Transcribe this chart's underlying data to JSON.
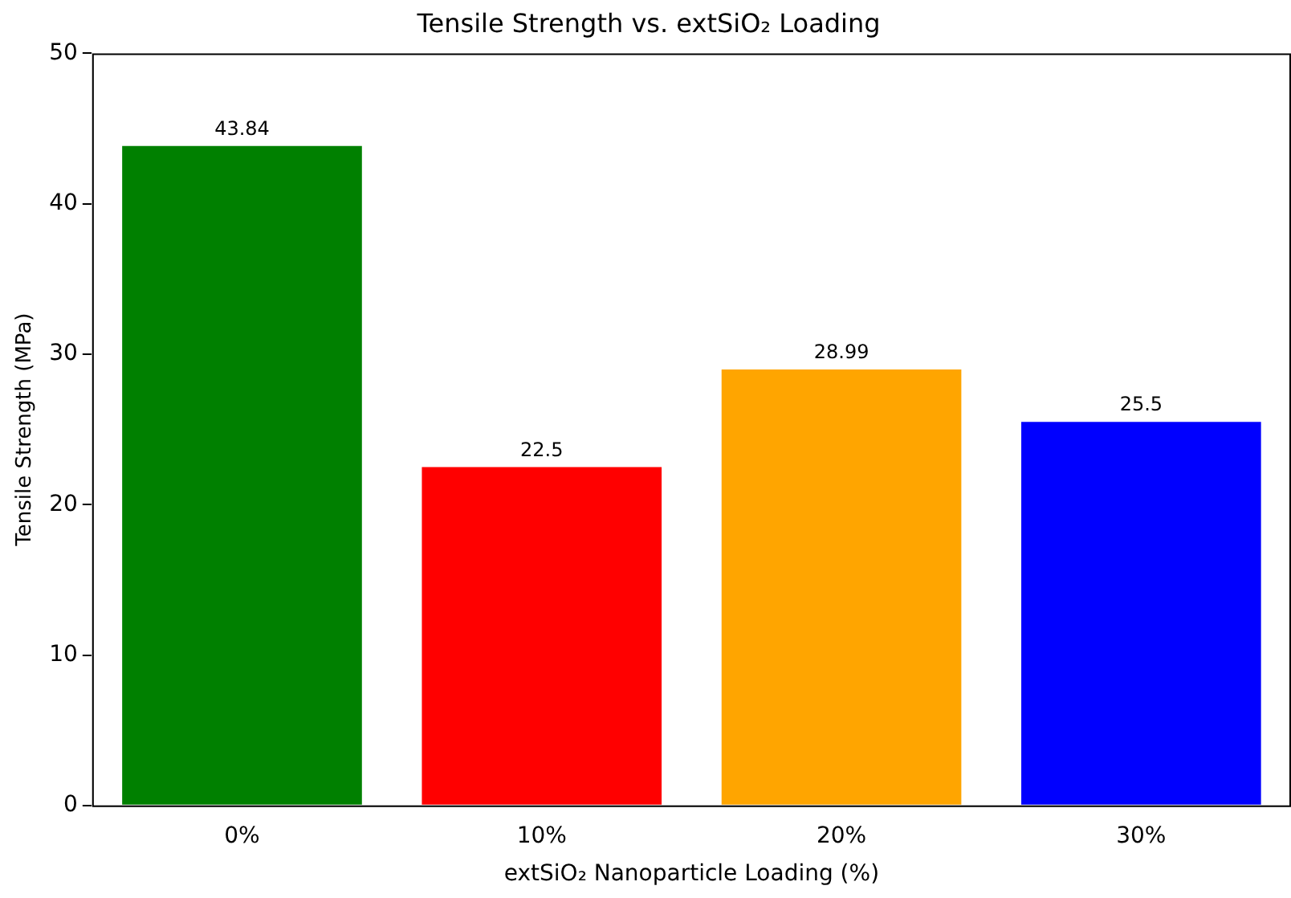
{
  "chart_data": {
    "type": "bar",
    "title": "Tensile Strength vs. extSiO₂ Loading",
    "xlabel": "extSiO₂ Nanoparticle Loading (%)",
    "ylabel": "Tensile Strength (MPa)",
    "categories": [
      "0%",
      "10%",
      "20%",
      "30%"
    ],
    "values": [
      43.84,
      22.5,
      28.99,
      25.5
    ],
    "colors": [
      "#008000",
      "#ff0000",
      "#ffa500",
      "#0000ff"
    ],
    "ylim": [
      0,
      50
    ],
    "yticks": [
      0,
      10,
      20,
      30,
      40,
      50
    ],
    "grid": false,
    "legend": false,
    "data_labels": true
  }
}
